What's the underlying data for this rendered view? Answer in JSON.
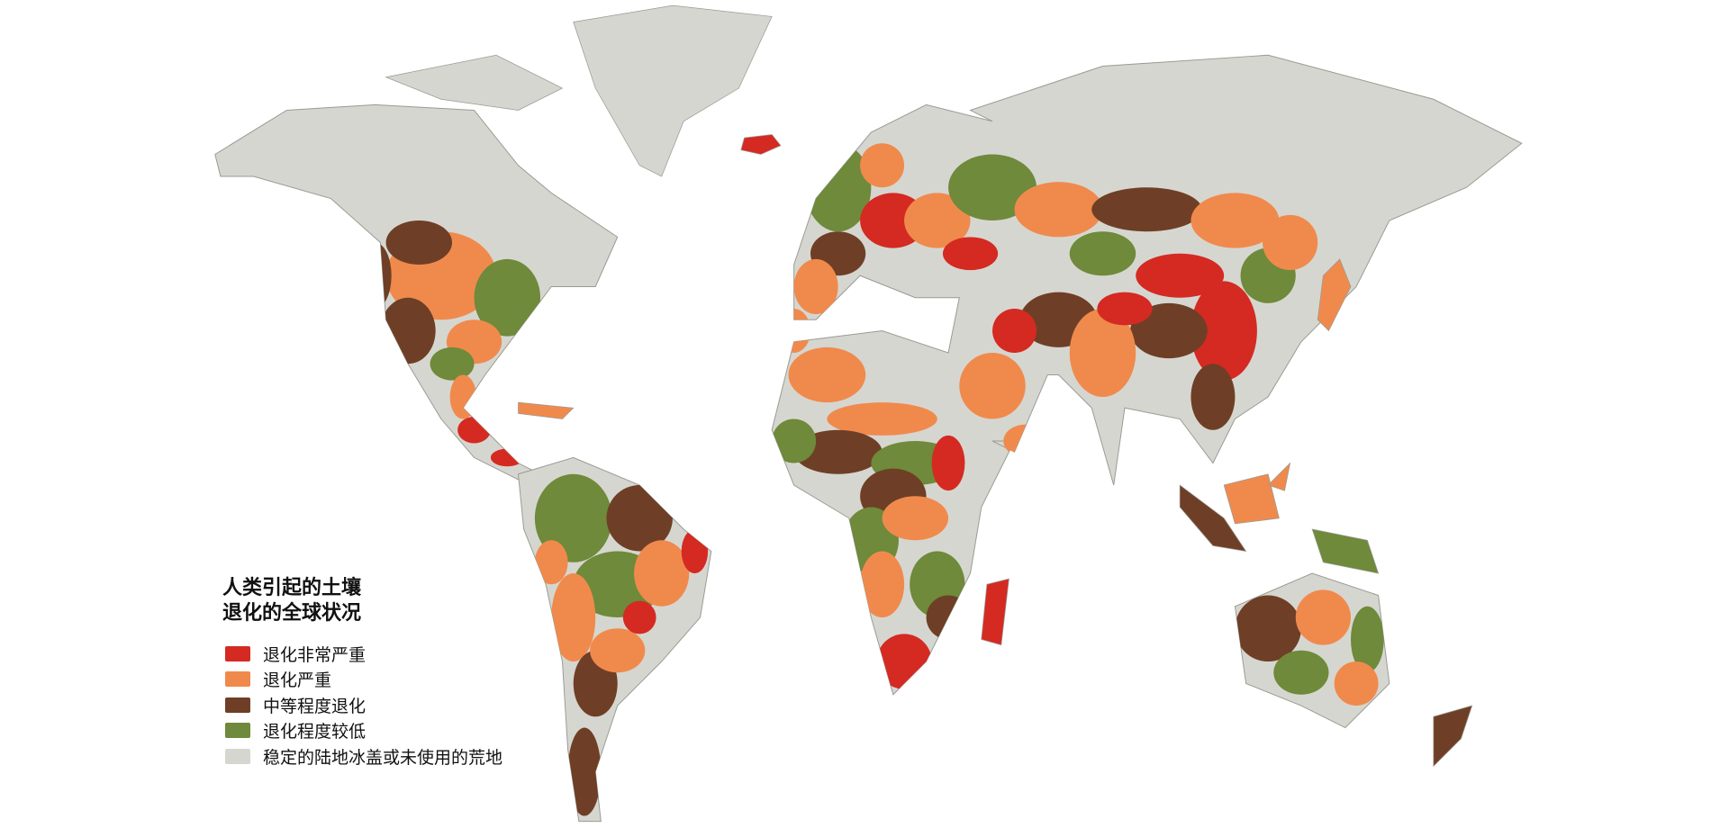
{
  "map": {
    "title_lines": [
      "人类引起的土壤",
      "退化的全球状况"
    ],
    "legend": [
      {
        "label": "退化非常严重",
        "color": "#d42a22"
      },
      {
        "label": "退化严重",
        "color": "#f08a4c"
      },
      {
        "label": "中等程度退化",
        "color": "#6e3f26"
      },
      {
        "label": "退化程度较低",
        "color": "#6e8a3a"
      },
      {
        "label": "稳定的陆地冰盖或未使用的荒地",
        "color": "#d6d6d0"
      }
    ],
    "base_color": "#d6d6d0",
    "background": "#ffffff"
  }
}
